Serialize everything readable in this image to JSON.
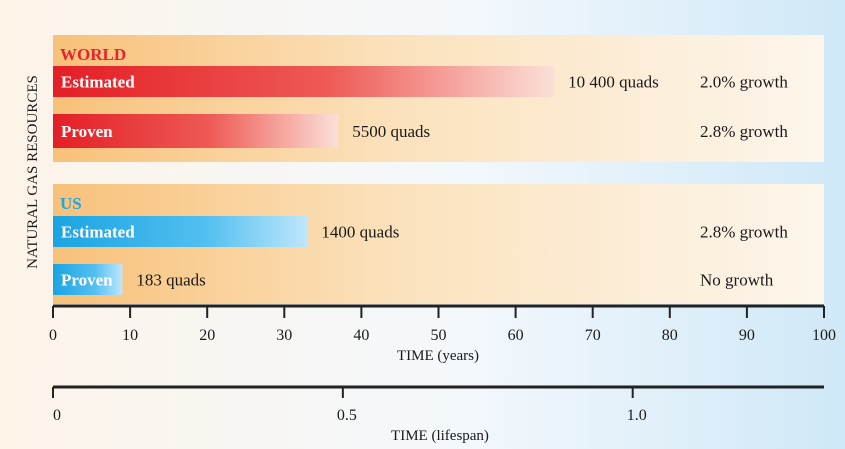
{
  "chart_data": {
    "type": "bar",
    "orientation": "horizontal",
    "ylabel": "NATURAL GAS RESOURCES",
    "groups": [
      {
        "title": "WORLD",
        "title_color": "#e8232a",
        "bar_color": "#e41e26",
        "bars": [
          {
            "label": "Estimated",
            "years": 65,
            "amount": "10 400 quads",
            "growth": "2.0% growth"
          },
          {
            "label": "Proven",
            "years": 37,
            "amount": "5500 quads",
            "growth": "2.8% growth"
          }
        ]
      },
      {
        "title": "US",
        "title_color": "#1ba7e0",
        "bar_color": "#1aa4e2",
        "bars": [
          {
            "label": "Estimated",
            "years": 33,
            "amount": "1400 quads",
            "growth": "2.8% growth"
          },
          {
            "label": "Proven",
            "years": 9,
            "amount": "183 quads",
            "growth": "No growth"
          }
        ]
      }
    ],
    "x_axis": {
      "label": "TIME (years)",
      "range": [
        0,
        100
      ],
      "ticks": [
        0,
        10,
        20,
        30,
        40,
        50,
        60,
        70,
        80,
        90,
        100
      ]
    },
    "lifespan_axis": {
      "label": "TIME (lifespan)",
      "range": [
        0,
        1.33
      ],
      "ticks": [
        "0",
        "0.5",
        "1.0"
      ]
    }
  }
}
